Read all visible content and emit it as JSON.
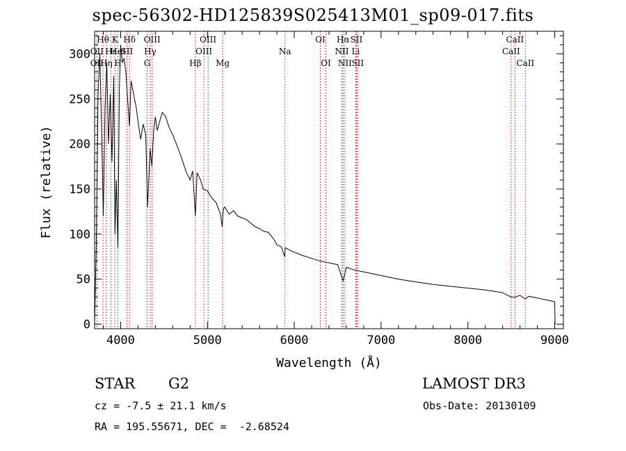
{
  "chart_data": {
    "type": "line",
    "title": "spec-56302-HD125839S025413M01_sp09-017.fits",
    "xlabel": "Wavelength (Å)",
    "ylabel": "Flux (relative)",
    "xlim": [
      3700,
      9100
    ],
    "ylim": [
      -5,
      325
    ],
    "xticks": [
      4000,
      5000,
      6000,
      7000,
      8000,
      9000
    ],
    "yticks": [
      0,
      50,
      100,
      150,
      200,
      250,
      300
    ],
    "series": [
      {
        "x": [
          3700,
          3720,
          3740,
          3760,
          3780,
          3800,
          3820,
          3840,
          3860,
          3880,
          3900,
          3920,
          3935,
          3950,
          3968,
          3985,
          4000,
          4020,
          4040,
          4060,
          4080,
          4102,
          4120,
          4150,
          4180,
          4200,
          4230,
          4260,
          4290,
          4310,
          4340,
          4360,
          4380,
          4400,
          4420,
          4450,
          4480,
          4520,
          4560,
          4600,
          4650,
          4700,
          4750,
          4800,
          4830,
          4861,
          4880,
          4920,
          4950,
          5000,
          5050,
          5100,
          5150,
          5170,
          5183,
          5200,
          5250,
          5300,
          5350,
          5400,
          5450,
          5500,
          5550,
          5600,
          5650,
          5700,
          5750,
          5780,
          5800,
          5850,
          5890,
          5896,
          5950,
          6000,
          6100,
          6200,
          6300,
          6400,
          6500,
          6563,
          6600,
          6700,
          6800,
          6900,
          7000,
          7200,
          7400,
          7600,
          7800,
          8000,
          8200,
          8400,
          8498,
          8542,
          8600,
          8662,
          8700,
          8800,
          8900,
          9000,
          9005
        ],
        "y": [
          0,
          90,
          255,
          300,
          220,
          120,
          240,
          290,
          200,
          255,
          180,
          275,
          100,
          160,
          85,
          260,
          310,
          290,
          295,
          280,
          250,
          220,
          270,
          255,
          240,
          225,
          205,
          222,
          210,
          130,
          195,
          175,
          215,
          230,
          215,
          225,
          235,
          230,
          218,
          210,
          198,
          185,
          170,
          160,
          170,
          120,
          168,
          160,
          150,
          148,
          140,
          135,
          122,
          108,
          128,
          130,
          122,
          126,
          120,
          118,
          116,
          112,
          108,
          106,
          103,
          102,
          96,
          92,
          88,
          86,
          75,
          85,
          82,
          80,
          76,
          73,
          70,
          68,
          66,
          48,
          63,
          60,
          58,
          56,
          54,
          50,
          47,
          44,
          42,
          40,
          38,
          35,
          30,
          30,
          32,
          28,
          31,
          29,
          27,
          25,
          0
        ],
        "style": "black"
      }
    ],
    "line_markers": {
      "row1": [
        {
          "label": "Hθ",
          "x": 3797
        },
        {
          "label": "K",
          "x": 3934
        },
        {
          "label": "Hδ",
          "x": 4102
        },
        {
          "label": "OIII",
          "x": 4363
        },
        {
          "label": "OIII",
          "x": 5007
        },
        {
          "label": "OI",
          "x": 6300
        },
        {
          "label": "Hα",
          "x": 6563
        },
        {
          "label": "SII",
          "x": 6716
        },
        {
          "label": "CaII",
          "x": 8542
        }
      ],
      "row2": [
        {
          "label": "OII",
          "x": 3727
        },
        {
          "label": "Hε",
          "x": 3889
        },
        {
          "label": "HeI",
          "x": 3968
        },
        {
          "label": "SII",
          "x": 4072
        },
        {
          "label": "Hγ",
          "x": 4340
        },
        {
          "label": "OIII",
          "x": 4959
        },
        {
          "label": "Na",
          "x": 5893
        },
        {
          "label": "NII",
          "x": 6548
        },
        {
          "label": "Li",
          "x": 6708
        },
        {
          "label": "CaII",
          "x": 8498
        }
      ],
      "row3": [
        {
          "label": "OII",
          "x": 3727
        },
        {
          "label": "Hη",
          "x": 3835
        },
        {
          "label": "H",
          "x": 3968
        },
        {
          "label": "G",
          "x": 4305
        },
        {
          "label": "Hβ",
          "x": 4861
        },
        {
          "label": "Mg",
          "x": 5175
        },
        {
          "label": "OI",
          "x": 6364
        },
        {
          "label": "NII",
          "x": 6583
        },
        {
          "label": "SII",
          "x": 6731
        },
        {
          "label": "CaII",
          "x": 8662
        }
      ]
    },
    "grid": false,
    "legend": "none"
  },
  "info": {
    "class": "STAR",
    "subclass": "G2",
    "survey": "LAMOST DR3",
    "cz": "cz = -7.5 ± 21.1 km/s",
    "obs_date": "Obs-Date: 20130109",
    "radec": "RA = 195.55671, DEC =  -2.68524"
  },
  "colors": {
    "marker": "#cc0000",
    "line": "#000000"
  }
}
